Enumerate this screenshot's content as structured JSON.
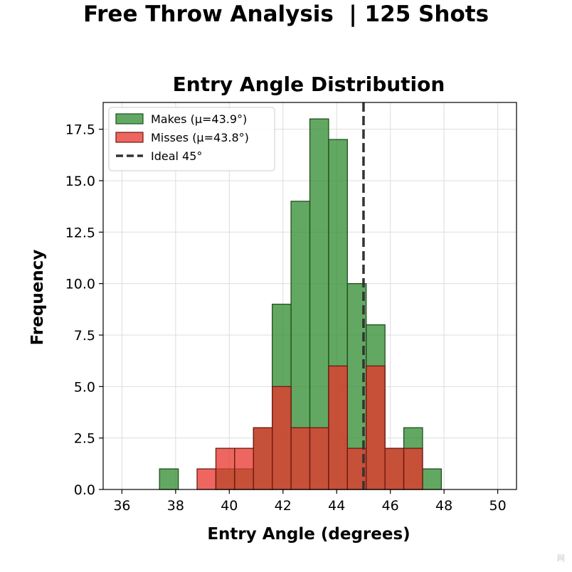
{
  "suptitle": "Free Throw Analysis  | 125 Shots",
  "watermark": "网",
  "colors": {
    "makes": "#2e8b2e",
    "misses": "#e8332b",
    "edge_makes": "#1f4f1f",
    "edge_misses": "#6b1a12",
    "ideal_line": "#333333",
    "grid": "#dddddd"
  },
  "chart_data": {
    "type": "bar",
    "title": "Entry Angle Distribution",
    "xlabel": "Entry Angle (degrees)",
    "ylabel": "Frequency",
    "xlim": [
      35.3,
      50.7
    ],
    "ylim": [
      0,
      18.8
    ],
    "xticks": [
      36,
      38,
      40,
      42,
      44,
      46,
      48,
      50
    ],
    "yticks": [
      0.0,
      2.5,
      5.0,
      7.5,
      10.0,
      12.5,
      15.0,
      17.5
    ],
    "ytick_labels": [
      "0.0",
      "2.5",
      "5.0",
      "7.5",
      "10.0",
      "12.5",
      "15.0",
      "17.5"
    ],
    "grid": true,
    "legend_position": "top-left",
    "series": [
      {
        "name": "Makes (μ=43.9°)",
        "bin_edges": [
          36.0,
          36.7,
          37.4,
          38.1,
          38.8,
          39.5,
          40.2,
          40.9,
          41.6,
          42.3,
          43.0,
          43.7,
          44.4,
          45.1,
          45.8,
          46.5,
          47.2,
          47.9,
          48.6,
          49.3,
          50.0
        ],
        "values": [
          0,
          0,
          1,
          0,
          0,
          1,
          1,
          3,
          9,
          14,
          18,
          17,
          10,
          8,
          2,
          3,
          1,
          0,
          0,
          0
        ]
      },
      {
        "name": "Misses (μ=43.8°)",
        "bin_edges": [
          36.0,
          36.7,
          37.4,
          38.1,
          38.8,
          39.5,
          40.2,
          40.9,
          41.6,
          42.3,
          43.0,
          43.7,
          44.4,
          45.1,
          45.8,
          46.5,
          47.2,
          47.9,
          48.6,
          49.3,
          50.0
        ],
        "values": [
          0,
          0,
          0,
          0,
          1,
          2,
          2,
          3,
          5,
          3,
          3,
          6,
          2,
          6,
          2,
          2,
          0,
          0,
          0,
          0
        ]
      }
    ],
    "reference_lines": [
      {
        "name": "Ideal 45°",
        "x": 45,
        "style": "dashed"
      }
    ]
  }
}
